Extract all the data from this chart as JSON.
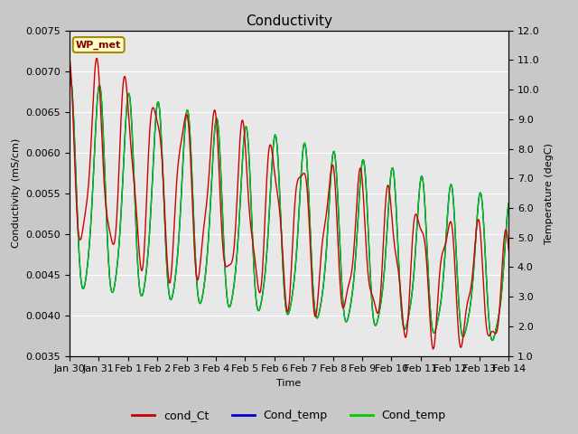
{
  "title": "Conductivity",
  "xlabel": "Time",
  "ylabel_left": "Conductivity (mS/cm)",
  "ylabel_right": "Temperature (degC)",
  "ylim_left": [
    0.0035,
    0.0075
  ],
  "ylim_right": [
    1.0,
    12.0
  ],
  "yticks_left": [
    0.0035,
    0.004,
    0.0045,
    0.005,
    0.0055,
    0.006,
    0.0065,
    0.007,
    0.0075
  ],
  "yticks_right": [
    1.0,
    2.0,
    3.0,
    4.0,
    5.0,
    6.0,
    7.0,
    8.0,
    9.0,
    10.0,
    11.0,
    12.0
  ],
  "fig_bg_color": "#c8c8c8",
  "plot_bg_color": "#e8e8e8",
  "legend_label1": "cond_Ct",
  "legend_label2": "Cond_temp",
  "legend_label3": "Cond_temp",
  "legend_color1": "#cc0000",
  "legend_color2": "#0000cc",
  "legend_color3": "#00cc00",
  "wp_met_bg": "#ffffcc",
  "wp_met_border": "#aa8800",
  "wp_met_text_color": "#880000",
  "line1_color": "#cc0000",
  "line2_color": "#0000cc",
  "line3_color": "#00cc00",
  "title_fontsize": 11,
  "axis_fontsize": 8,
  "tick_fontsize": 8,
  "xtick_labels": [
    "Jan 30",
    "Jan 31",
    "Feb 1",
    "Feb 2",
    "Feb 3",
    "Feb 4",
    "Feb 5",
    "Feb 6",
    "Feb 7",
    "Feb 8",
    "Feb 9",
    "Feb 10",
    "Feb 11",
    "Feb 12",
    "Feb 13",
    "Feb 14"
  ]
}
